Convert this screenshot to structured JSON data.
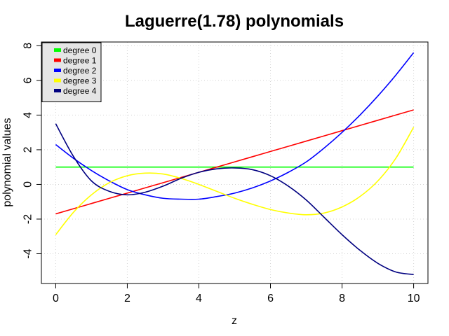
{
  "chart_data": {
    "type": "line",
    "title": "Laguerre(1.78) polynomials",
    "xlabel": "z",
    "ylabel": "polynomial values",
    "xlim": [
      0,
      10
    ],
    "ylim": [
      -5.2,
      7.7
    ],
    "xticks": [
      0,
      2,
      4,
      6,
      8,
      10
    ],
    "yticks": [
      -4,
      -2,
      0,
      2,
      4,
      6,
      8
    ],
    "grid": true,
    "legend_position": "top-left",
    "x": [
      0,
      0.5,
      1,
      1.5,
      2,
      2.5,
      3,
      3.5,
      4,
      4.5,
      5,
      5.5,
      6,
      6.5,
      7,
      7.5,
      8,
      8.5,
      9,
      9.5,
      10
    ],
    "series": [
      {
        "name": "degree 0",
        "color": "#00ff00",
        "values": [
          1,
          1,
          1,
          1,
          1,
          1,
          1,
          1,
          1,
          1,
          1,
          1,
          1,
          1,
          1,
          1,
          1,
          1,
          1,
          1,
          1
        ]
      },
      {
        "name": "degree 1",
        "color": "#ff0000",
        "values": [
          -1.7,
          -1.4,
          -1.1,
          -0.8,
          -0.5,
          -0.2,
          0.1,
          0.4,
          0.7,
          1.0,
          1.3,
          1.6,
          1.9,
          2.2,
          2.5,
          2.8,
          3.1,
          3.4,
          3.7,
          4.0,
          4.3
        ]
      },
      {
        "name": "degree 2",
        "color": "#0000ff",
        "values": [
          2.3,
          1.5,
          0.8,
          0.2,
          -0.3,
          -0.6,
          -0.8,
          -0.85,
          -0.85,
          -0.7,
          -0.5,
          -0.2,
          0.2,
          0.7,
          1.3,
          2.1,
          3.0,
          4.0,
          5.1,
          6.3,
          7.6
        ]
      },
      {
        "name": "degree 3",
        "color": "#ffff00",
        "values": [
          -2.9,
          -1.6,
          -0.6,
          0.1,
          0.5,
          0.65,
          0.6,
          0.35,
          0.0,
          -0.4,
          -0.8,
          -1.15,
          -1.45,
          -1.65,
          -1.75,
          -1.65,
          -1.3,
          -0.7,
          0.2,
          1.5,
          3.3
        ]
      },
      {
        "name": "degree 4",
        "color": "#000080",
        "values": [
          3.5,
          1.6,
          0.2,
          -0.4,
          -0.6,
          -0.45,
          -0.1,
          0.35,
          0.7,
          0.9,
          0.95,
          0.85,
          0.5,
          -0.1,
          -0.9,
          -1.9,
          -2.9,
          -3.8,
          -4.55,
          -5.05,
          -5.2
        ]
      }
    ]
  }
}
